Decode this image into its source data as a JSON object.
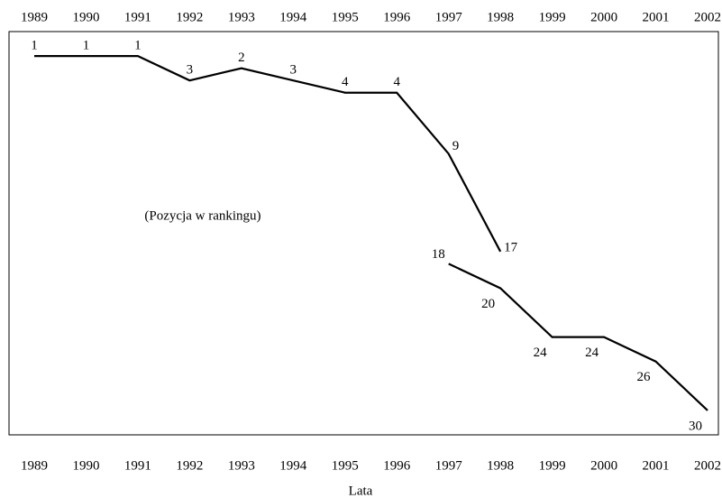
{
  "chart_data": {
    "type": "line",
    "categories": [
      "1989",
      "1990",
      "1991",
      "1992",
      "1993",
      "1994",
      "1995",
      "1996",
      "1997",
      "1998",
      "1999",
      "2000",
      "2001",
      "2002"
    ],
    "series": [
      {
        "color": "#000000",
        "values": [
          1,
          1,
          1,
          3,
          2,
          3,
          4,
          4,
          9,
          17,
          null,
          null,
          null,
          null
        ]
      },
      {
        "color": "#000000",
        "values": [
          null,
          null,
          null,
          null,
          null,
          null,
          null,
          null,
          18,
          20,
          24,
          24,
          26,
          30
        ]
      }
    ],
    "ylim": [
      -1,
      32
    ],
    "y_inverted": true,
    "grid": false,
    "annotation": "(Pozycja w rankingu)",
    "xlabel": "Lata"
  }
}
